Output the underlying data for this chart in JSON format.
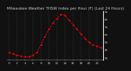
{
  "title": "Milwaukee Weather THSW Index per Hour (F) (Last 24 Hours)",
  "hours": [
    0,
    1,
    2,
    3,
    4,
    5,
    6,
    7,
    8,
    9,
    10,
    11,
    12,
    13,
    14,
    15,
    16,
    17,
    18,
    19,
    20,
    21,
    22,
    23
  ],
  "values": [
    42,
    40,
    38,
    37,
    36,
    36,
    38,
    42,
    52,
    62,
    72,
    80,
    86,
    91,
    90,
    84,
    78,
    72,
    66,
    60,
    55,
    52,
    50,
    48
  ],
  "bg_color": "#111111",
  "line_color": "#ff0000",
  "text_color": "#cccccc",
  "grid_color": "#555555",
  "ylim": [
    32,
    96
  ],
  "yticks": [
    35,
    45,
    55,
    65,
    75,
    85,
    95
  ],
  "title_fontsize": 4.0,
  "tick_fontsize": 3.2,
  "xlabel_step": 2,
  "xlim": [
    -0.5,
    23.5
  ]
}
